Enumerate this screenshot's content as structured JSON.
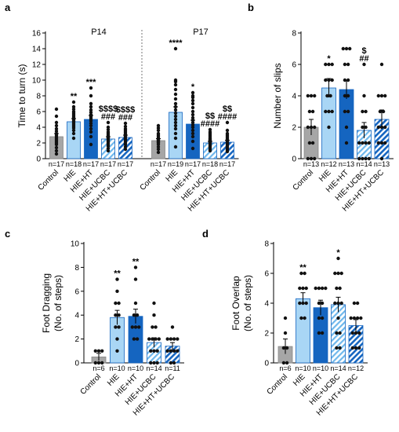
{
  "colors": {
    "gray": "#a6a6a6",
    "light_blue": "#a9d6f5",
    "dark_blue": "#1565c0",
    "stripe_blue": "#1565c0",
    "sig_black": "#000000",
    "sig_blue": "#2e8ee0"
  },
  "chart_data": [
    {
      "panel": "a",
      "type": "bar",
      "ylabel": "Time to turn (s)",
      "ylim": [
        0,
        16
      ],
      "yticks": [
        0,
        2,
        4,
        6,
        8,
        10,
        12,
        14,
        16
      ],
      "group_titles": [
        "P14",
        "P17"
      ],
      "categories": [
        "Control",
        "HIE",
        "HIE+HT",
        "HIE+UCBC",
        "HIE+HT+UCBC",
        "Control",
        "HIE",
        "HIE+HT",
        "HIE+UCBC",
        "HIE+HT+UCBC"
      ],
      "group_of": [
        0,
        0,
        0,
        0,
        0,
        1,
        1,
        1,
        1,
        1
      ],
      "styles": [
        "gray",
        "light",
        "dark",
        "stripe_light",
        "stripe_dark",
        "gray",
        "light",
        "dark",
        "stripe_light",
        "stripe_dark"
      ],
      "values": [
        2.8,
        4.7,
        5.0,
        2.5,
        2.7,
        2.3,
        5.9,
        4.4,
        2.0,
        2.1
      ],
      "errors": [
        0.4,
        0.4,
        0.5,
        0.3,
        0.3,
        0.25,
        0.7,
        0.5,
        0.2,
        0.25
      ],
      "points": [
        [
          0.6,
          1.0,
          1.4,
          1.8,
          2.0,
          2.2,
          2.4,
          2.6,
          2.8,
          3.0,
          3.2,
          3.5,
          3.8,
          4.2,
          4.6,
          5.4,
          6.3
        ],
        [
          2.6,
          3.2,
          3.6,
          3.9,
          4.1,
          4.3,
          4.5,
          4.7,
          4.8,
          5.0,
          5.2,
          5.4,
          5.6,
          5.8,
          6.0,
          6.3,
          6.6,
          7.2
        ],
        [
          1.8,
          2.8,
          3.4,
          3.8,
          4.2,
          4.5,
          4.8,
          5.0,
          5.2,
          5.4,
          5.6,
          5.9,
          6.2,
          6.6,
          7.0,
          8.0,
          9.0
        ],
        [
          1.0,
          1.3,
          1.6,
          1.8,
          2.0,
          2.2,
          2.3,
          2.5,
          2.6,
          2.7,
          2.8,
          3.0,
          3.2,
          3.4,
          3.7,
          4.0,
          4.6
        ],
        [
          1.2,
          1.5,
          1.8,
          2.0,
          2.2,
          2.4,
          2.5,
          2.6,
          2.8,
          2.9,
          3.0,
          3.2,
          3.4,
          3.6,
          3.8,
          4.1,
          4.5
        ],
        [
          0.8,
          1.2,
          1.5,
          1.8,
          2.0,
          2.1,
          2.2,
          2.3,
          2.4,
          2.5,
          2.6,
          2.8,
          3.0,
          3.2,
          3.6,
          3.9,
          4.2
        ],
        [
          1.5,
          2.6,
          3.2,
          3.8,
          4.2,
          4.6,
          5.0,
          5.4,
          5.8,
          6.2,
          6.6,
          7.0,
          7.6,
          8.2,
          8.8,
          9.4,
          9.8,
          10.0,
          14.0
        ],
        [
          1.3,
          2.2,
          2.8,
          3.2,
          3.6,
          4.0,
          4.3,
          4.6,
          4.9,
          5.2,
          5.6,
          6.0,
          6.5,
          7.0,
          7.4,
          7.8,
          8.0,
          8.4
        ],
        [
          1.0,
          1.2,
          1.4,
          1.6,
          1.8,
          1.9,
          2.0,
          2.1,
          2.2,
          2.3,
          2.4,
          2.5,
          2.6,
          2.8,
          3.0,
          3.2,
          3.4,
          3.7
        ],
        [
          0.9,
          1.1,
          1.3,
          1.5,
          1.7,
          1.9,
          2.0,
          2.1,
          2.2,
          2.3,
          2.4,
          2.6,
          2.8,
          3.0,
          3.2,
          3.6,
          4.6
        ]
      ],
      "n_labels": [
        "n=17",
        "n=18",
        "n=17",
        "n=17",
        "n=17",
        "n=17",
        "n=19",
        "n=17",
        "n=18",
        "n=17"
      ],
      "annotations": [
        {
          "bar": 1,
          "lines": [
            {
              "text": "**",
              "color": "black"
            }
          ]
        },
        {
          "bar": 2,
          "lines": [
            {
              "text": "***",
              "color": "black"
            }
          ]
        },
        {
          "bar": 3,
          "lines": [
            {
              "text": "$$$$",
              "color": "blue"
            },
            {
              "text": "###",
              "color": "blue"
            }
          ]
        },
        {
          "bar": 4,
          "lines": [
            {
              "text": "$$$$",
              "color": "blue"
            },
            {
              "text": "###",
              "color": "blue"
            }
          ]
        },
        {
          "bar": 6,
          "lines": [
            {
              "text": "****",
              "color": "black"
            }
          ]
        },
        {
          "bar": 7,
          "lines": [
            {
              "text": "*",
              "color": "black"
            }
          ]
        },
        {
          "bar": 8,
          "lines": [
            {
              "text": "$$",
              "color": "blue"
            },
            {
              "text": "####",
              "color": "blue"
            }
          ]
        },
        {
          "bar": 9,
          "lines": [
            {
              "text": "$$",
              "color": "blue"
            },
            {
              "text": "####",
              "color": "blue"
            }
          ]
        }
      ]
    },
    {
      "panel": "b",
      "type": "bar",
      "ylabel": "Number of slips",
      "ylim": [
        0,
        8
      ],
      "yticks": [
        0,
        2,
        4,
        6,
        8
      ],
      "categories": [
        "Control",
        "HIE",
        "HIE+HT",
        "HIE+UCBC",
        "HIE+HT+UCBC"
      ],
      "styles": [
        "gray",
        "light",
        "dark",
        "stripe_light",
        "stripe_dark"
      ],
      "values": [
        2.0,
        4.5,
        4.4,
        1.8,
        2.5
      ],
      "errors": [
        0.5,
        0.6,
        0.6,
        0.5,
        0.6
      ],
      "points": [
        [
          0,
          0,
          0,
          1,
          1,
          2,
          2,
          2,
          3,
          3,
          4,
          4,
          4
        ],
        [
          2,
          3,
          3,
          3,
          4,
          4,
          5,
          5,
          5,
          6,
          6,
          6
        ],
        [
          1,
          2,
          3,
          3,
          4,
          4,
          5,
          5,
          6,
          6,
          7,
          7,
          7
        ],
        [
          0,
          0,
          0,
          0,
          1,
          1,
          1,
          1,
          2,
          2,
          3,
          3,
          4,
          6
        ],
        [
          0,
          1,
          1,
          1,
          2,
          2,
          2,
          3,
          3,
          4,
          4,
          4,
          6
        ]
      ],
      "n_labels": [
        "n=13",
        "n=12",
        "n=13",
        "n=14",
        "n=13"
      ],
      "annotations": [
        {
          "bar": 1,
          "lines": [
            {
              "text": "*",
              "color": "black"
            }
          ]
        },
        {
          "bar": 3,
          "lines": [
            {
              "text": "$",
              "color": "blue"
            },
            {
              "text": "##",
              "color": "blue"
            }
          ]
        }
      ]
    },
    {
      "panel": "c",
      "type": "bar",
      "ylabel_lines": [
        "Foot Dragging",
        "(No. of steps)"
      ],
      "ylim": [
        0,
        10
      ],
      "yticks": [
        0,
        2,
        4,
        6,
        8,
        10
      ],
      "categories": [
        "Control",
        "HIE",
        "HIE+HT",
        "HIE+UCBC",
        "HIE+HT+UCBC"
      ],
      "styles": [
        "gray",
        "light",
        "dark",
        "stripe_light",
        "stripe_dark"
      ],
      "values": [
        0.5,
        3.8,
        3.9,
        1.7,
        1.4
      ],
      "errors": [
        0.3,
        0.6,
        0.6,
        0.4,
        0.3
      ],
      "points": [
        [
          0,
          0,
          0,
          1,
          1,
          1
        ],
        [
          1,
          2,
          3,
          3,
          4,
          4,
          5,
          5,
          6,
          7
        ],
        [
          2,
          2,
          3,
          3,
          3,
          4,
          4,
          5,
          7,
          8
        ],
        [
          0,
          0,
          0,
          1,
          1,
          1,
          2,
          2,
          2,
          2,
          3,
          3,
          4,
          5
        ],
        [
          0,
          0,
          1,
          1,
          1,
          1,
          2,
          2,
          2,
          2,
          3
        ]
      ],
      "n_labels": [
        "n=6",
        "n=10",
        "n=10",
        "n=14",
        "n=11"
      ],
      "annotations": [
        {
          "bar": 1,
          "lines": [
            {
              "text": "**",
              "color": "black"
            }
          ]
        },
        {
          "bar": 2,
          "lines": [
            {
              "text": "**",
              "color": "black"
            }
          ]
        }
      ]
    },
    {
      "panel": "d",
      "type": "bar",
      "ylabel_lines": [
        "Foot Overlap",
        "(No. of steps)"
      ],
      "ylim": [
        0,
        8
      ],
      "yticks": [
        0,
        2,
        4,
        6,
        8
      ],
      "categories": [
        "Control",
        "HIE",
        "HIE+HT",
        "HIE+UCBC",
        "HIE+HT+UCBC"
      ],
      "styles": [
        "gray",
        "light",
        "dark",
        "stripe_light",
        "stripe_dark"
      ],
      "values": [
        1.1,
        4.3,
        3.7,
        3.9,
        2.5
      ],
      "errors": [
        0.5,
        0.4,
        0.5,
        0.5,
        0.4
      ],
      "points": [
        [
          0,
          0,
          1,
          1,
          2,
          3
        ],
        [
          3,
          3,
          4,
          4,
          4,
          5,
          5,
          5,
          6,
          6
        ],
        [
          2,
          2,
          3,
          3,
          4,
          4,
          5,
          5,
          5,
          5
        ],
        [
          1,
          1,
          2,
          2,
          3,
          4,
          4,
          4,
          5,
          5,
          6,
          6,
          6,
          7
        ],
        [
          1,
          1,
          1,
          2,
          2,
          2,
          3,
          3,
          3,
          3,
          4,
          4
        ]
      ],
      "n_labels": [
        "n=6",
        "n=10",
        "n=10",
        "n=14",
        "n=12"
      ],
      "annotations": [
        {
          "bar": 1,
          "lines": [
            {
              "text": "**",
              "color": "black"
            }
          ]
        },
        {
          "bar": 3,
          "lines": [
            {
              "text": "*",
              "color": "black"
            }
          ]
        }
      ]
    }
  ]
}
